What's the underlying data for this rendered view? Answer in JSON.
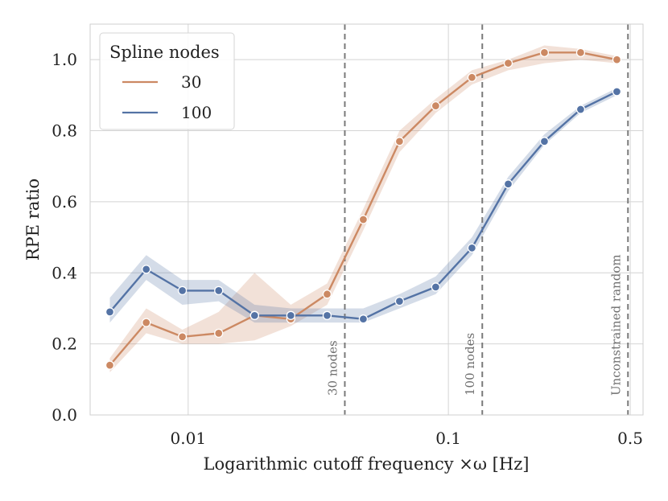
{
  "chart_data": {
    "type": "line",
    "xscale": "log",
    "xlabel": "Logarithmic cutoff frequency ×ω [Hz]",
    "ylabel": "RPE ratio",
    "xlim": [
      0.0042,
      0.56
    ],
    "ylim": [
      0.0,
      1.1
    ],
    "grid": true,
    "x_ticks": [
      {
        "value": 0.01,
        "label": "0.01"
      },
      {
        "value": 0.1,
        "label": "0.1"
      },
      {
        "value": 0.5,
        "label": "0.5"
      }
    ],
    "y_ticks": [
      {
        "value": 0.0,
        "label": "0.0"
      },
      {
        "value": 0.2,
        "label": "0.2"
      },
      {
        "value": 0.4,
        "label": "0.4"
      },
      {
        "value": 0.6,
        "label": "0.6"
      },
      {
        "value": 0.8,
        "label": "0.8"
      },
      {
        "value": 1.0,
        "label": "1.0"
      }
    ],
    "x": [
      0.005,
      0.0069,
      0.0095,
      0.0131,
      0.018,
      0.0248,
      0.0342,
      0.0471,
      0.0649,
      0.0894,
      0.1232,
      0.1698,
      0.2339,
      0.3223,
      0.4441
    ],
    "legend": {
      "title": "Spline nodes",
      "position": "top-left"
    },
    "series": [
      {
        "name": "30",
        "color": "#cc8963",
        "values": [
          0.14,
          0.26,
          0.22,
          0.23,
          0.28,
          0.27,
          0.34,
          0.55,
          0.77,
          0.87,
          0.95,
          0.99,
          1.02,
          1.02,
          1.0
        ],
        "lower": [
          0.12,
          0.23,
          0.2,
          0.2,
          0.21,
          0.25,
          0.31,
          0.52,
          0.74,
          0.85,
          0.93,
          0.97,
          0.99,
          1.0,
          0.99
        ],
        "upper": [
          0.16,
          0.3,
          0.24,
          0.29,
          0.4,
          0.31,
          0.37,
          0.58,
          0.8,
          0.89,
          0.97,
          1.0,
          1.04,
          1.03,
          1.01
        ]
      },
      {
        "name": "100",
        "color": "#5473a5",
        "values": [
          0.29,
          0.41,
          0.35,
          0.35,
          0.28,
          0.28,
          0.28,
          0.27,
          0.32,
          0.36,
          0.47,
          0.65,
          0.77,
          0.86,
          0.91
        ],
        "lower": [
          0.26,
          0.38,
          0.31,
          0.32,
          0.26,
          0.26,
          0.26,
          0.26,
          0.3,
          0.34,
          0.45,
          0.63,
          0.76,
          0.85,
          0.9
        ],
        "upper": [
          0.33,
          0.45,
          0.38,
          0.38,
          0.31,
          0.3,
          0.3,
          0.3,
          0.34,
          0.39,
          0.5,
          0.67,
          0.79,
          0.87,
          0.92
        ]
      }
    ],
    "vlines": [
      {
        "x": 0.04,
        "label": "30 nodes"
      },
      {
        "x": 0.135,
        "label": "100 nodes"
      },
      {
        "x": 0.49,
        "label": "Unconstrained random"
      }
    ]
  }
}
